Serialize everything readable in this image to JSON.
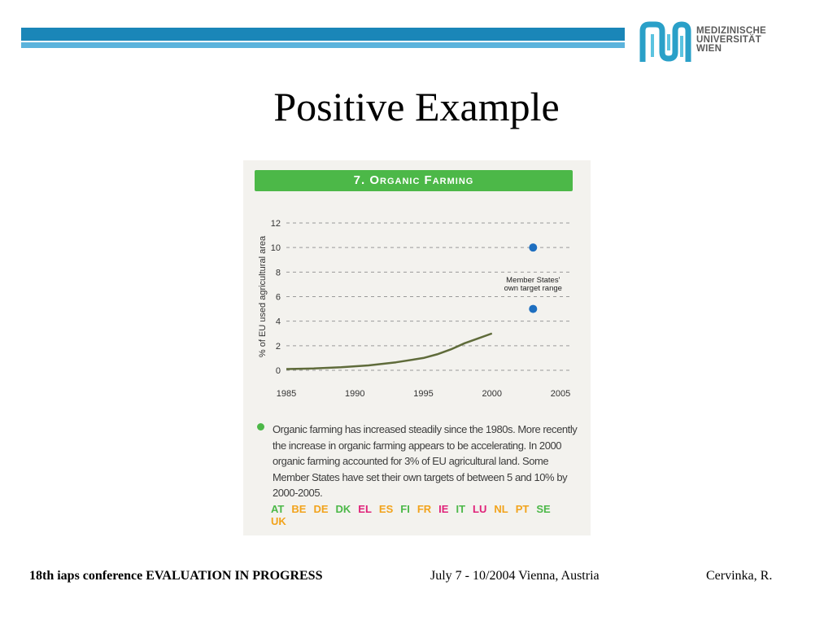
{
  "slide": {
    "title": "Positive Example"
  },
  "logo": {
    "line1": "MEDIZINISCHE",
    "line2": "UNIVERSITÄT",
    "line3": "WIEN"
  },
  "colors": {
    "bar_dark": "#1a86b8",
    "bar_light": "#5bb3dc",
    "header_green": "#4cb848",
    "line": "#5f6b3a",
    "target_dot": "#1e6fc0"
  },
  "figure": {
    "header": "7. Organic Farming",
    "bullet_text": "Organic farming has increased steadily since the 1980s. More recently the increase in organic farming appears to be accelerating. In 2000 organic farming accounted for 3% of EU agricultural land. Some Member States have set their own targets of between 5 and 10% by 2000-2005.",
    "country_codes": [
      {
        "code": "AT",
        "color": "#4cb848"
      },
      {
        "code": "BE",
        "color": "#f2a31b"
      },
      {
        "code": "DE",
        "color": "#f2a31b"
      },
      {
        "code": "DK",
        "color": "#4cb848"
      },
      {
        "code": "EL",
        "color": "#e0237a"
      },
      {
        "code": "ES",
        "color": "#f2a31b"
      },
      {
        "code": "FI",
        "color": "#4cb848"
      },
      {
        "code": "FR",
        "color": "#f2a31b"
      },
      {
        "code": "IE",
        "color": "#e0237a"
      },
      {
        "code": "IT",
        "color": "#4cb848"
      },
      {
        "code": "LU",
        "color": "#e0237a"
      },
      {
        "code": "NL",
        "color": "#f2a31b"
      },
      {
        "code": "PT",
        "color": "#f2a31b"
      },
      {
        "code": "SE",
        "color": "#4cb848"
      },
      {
        "code": "UK",
        "color": "#f2a31b"
      }
    ]
  },
  "chart_data": {
    "type": "line",
    "title": "7. Organic Farming",
    "xlabel": "",
    "ylabel": "% of EU used agricultural area",
    "xlim": [
      1985,
      2005
    ],
    "ylim": [
      0,
      12
    ],
    "x_ticks": [
      1985,
      1990,
      1995,
      2000,
      2005
    ],
    "y_ticks": [
      0,
      2,
      4,
      6,
      8,
      10,
      12
    ],
    "grid": true,
    "series": [
      {
        "x": [
          1985,
          1987,
          1989,
          1991,
          1993,
          1995,
          1996,
          1997,
          1998,
          1999,
          2000
        ],
        "y": [
          0.1,
          0.15,
          0.25,
          0.4,
          0.65,
          1.0,
          1.3,
          1.7,
          2.2,
          2.6,
          3.0
        ]
      }
    ],
    "target_points": {
      "x": [
        2003,
        2003
      ],
      "y": [
        10,
        5
      ]
    },
    "annotation": "Member States' own target range"
  },
  "footer": {
    "conference": "18th iaps conference EVALUATION IN PROGRESS",
    "date_place": "July 7 - 10/2004 Vienna, Austria",
    "author": "Cervinka, R."
  }
}
